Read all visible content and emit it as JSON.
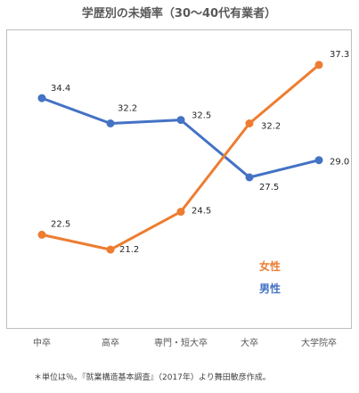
{
  "chart_data": {
    "type": "line",
    "title": "学歴別の未婚率（30〜40代有業者）",
    "categories": [
      "中卒",
      "高卒",
      "専門・短大卒",
      "大卒",
      "大学院卒"
    ],
    "series": [
      {
        "name": "男性",
        "color": "#4472C4",
        "values": [
          34.4,
          32.2,
          32.5,
          27.5,
          29.0
        ],
        "labels": [
          "34.4",
          "32.2",
          "32.5",
          "27.5",
          "29.0"
        ]
      },
      {
        "name": "女性",
        "color": "#ED7D31",
        "values": [
          22.5,
          21.2,
          24.5,
          32.2,
          37.3
        ],
        "labels": [
          "22.5",
          "21.2",
          "24.5",
          "32.2",
          "37.3"
        ]
      }
    ],
    "legend": [
      "女性",
      "男性"
    ],
    "legend_position": "right",
    "grid": false,
    "ylim": [
      15,
      40
    ],
    "note": "＊単位は％。『就業構造基本調査』（2017年）より舞田敏彦作成。"
  }
}
